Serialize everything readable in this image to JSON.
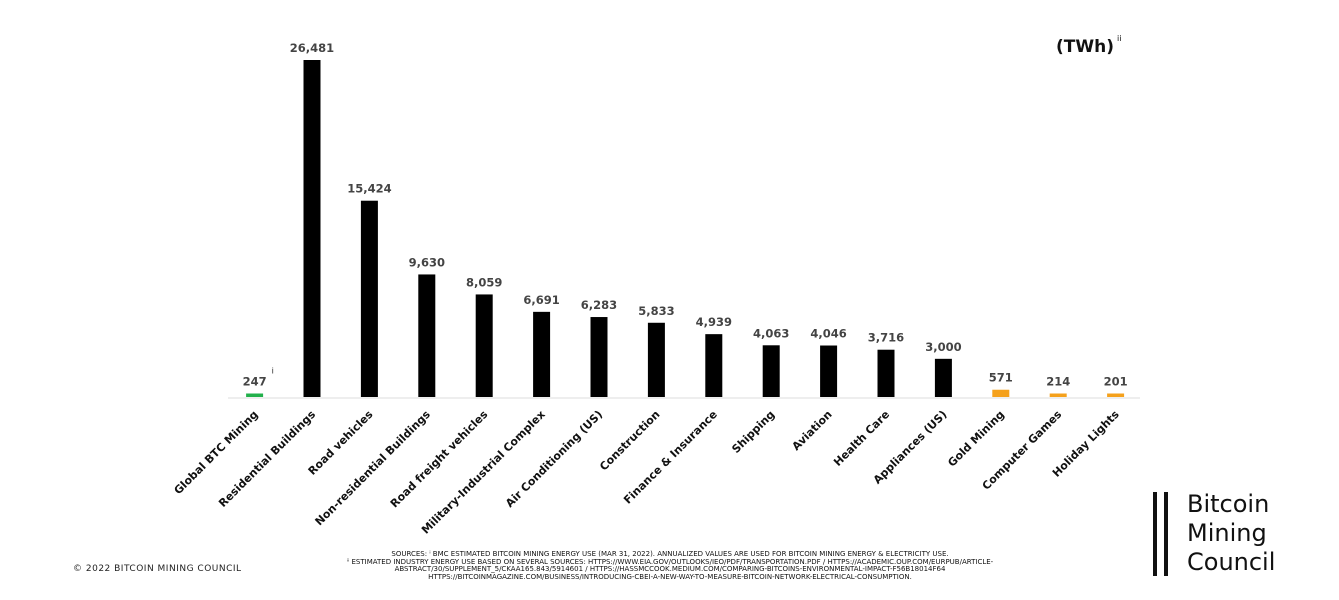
{
  "chart_data": {
    "type": "bar",
    "unit": "(TWh)",
    "unit_note": "ii",
    "categories": [
      "Global BTC Mining",
      "Residential Buildings",
      "Road vehicles",
      "Non-residential Buildings",
      "Road freight vehicles",
      "Military-Industrial Complex",
      "Air Conditioning (US)",
      "Construction",
      "Finance & Insurance",
      "Shipping",
      "Aviation",
      "Health Care",
      "Appliances (US)",
      "Gold Mining",
      "Computer Games",
      "Holiday Lights"
    ],
    "values": [
      247,
      26481,
      15424,
      9630,
      8059,
      6691,
      6283,
      5833,
      4939,
      4063,
      4046,
      3716,
      3000,
      571,
      214,
      201
    ],
    "value_labels": [
      "247",
      "26,481",
      "15,424",
      "9,630",
      "8,059",
      "6,691",
      "6,283",
      "5,833",
      "4,939",
      "4,063",
      "4,046",
      "3,716",
      "3,000",
      "571",
      "214",
      "201"
    ],
    "first_label_note": "i",
    "ylim": [
      0,
      26481
    ],
    "grid": false,
    "colors": {
      "btc": "#22b04b",
      "industry": "#000000",
      "other": "#f5a11c",
      "baseline": "#dddddd",
      "value_text": "#444444"
    },
    "bar_colors": [
      "btc",
      "industry",
      "industry",
      "industry",
      "industry",
      "industry",
      "industry",
      "industry",
      "industry",
      "industry",
      "industry",
      "industry",
      "industry",
      "other",
      "other",
      "other"
    ]
  },
  "footer": {
    "copyright": "© 2022 BITCOIN MINING COUNCIL",
    "sources": [
      "SOURCES: ⁱ BMC ESTIMATED BITCOIN MINING ENERGY USE (MAR 31, 2022). ANNUALIZED VALUES ARE USED FOR BITCOIN MINING ENERGY & ELECTRICITY USE.",
      "ⁱⁱ ESTIMATED INDUSTRY ENERGY USE BASED ON SEVERAL SOURCES: HTTPS://WWW.EIA.GOV/OUTLOOKS/IEO/PDF/TRANSPORTATION.PDF / HTTPS://ACADEMIC.OUP.COM/EURPUB/ARTICLE-",
      "ABSTRACT/30/SUPPLEMENT_5/CKAA165.843/5914601 / HTTPS://HASSMCCOOK.MEDIUM.COM/COMPARING-BITCOINS-ENVIRONMENTAL-IMPACT-F56B18014F64",
      "HTTPS://BITCOINMAGAZINE.COM/BUSINESS/INTRODUCING-CBEI-A-NEW-WAY-TO-MEASURE-BITCOIN-NETWORK-ELECTRICAL-CONSUMPTION."
    ]
  },
  "logo": {
    "line1": "Bitcoin",
    "line2": "Mining",
    "line3": "Council"
  }
}
